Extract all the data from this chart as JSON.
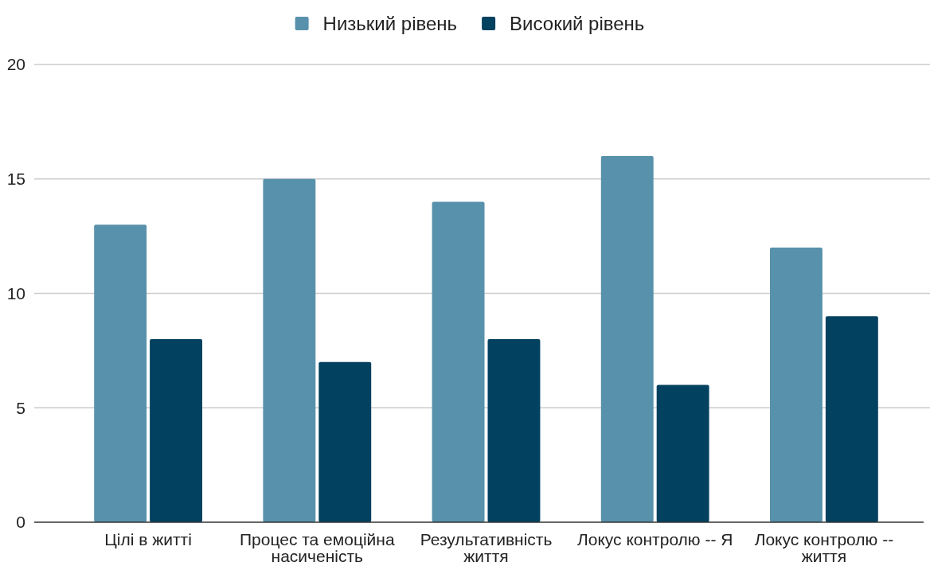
{
  "chart_data": {
    "type": "bar",
    "categories": [
      "Цілі в житті",
      "Процес та емоційна насиченість",
      "Результативність життя",
      "Локус контролю -- Я",
      "Локус контролю -- життя"
    ],
    "series": [
      {
        "name": "Низький рівень",
        "color": "#5891ab",
        "values": [
          13,
          15,
          14,
          16,
          12
        ]
      },
      {
        "name": "Високий рівень",
        "color": "#02415f",
        "values": [
          8,
          7,
          8,
          6,
          9
        ]
      }
    ],
    "ylim": [
      0,
      20
    ],
    "yticks": [
      0,
      5,
      10,
      15,
      20
    ],
    "grid": "y",
    "legend": "top"
  }
}
